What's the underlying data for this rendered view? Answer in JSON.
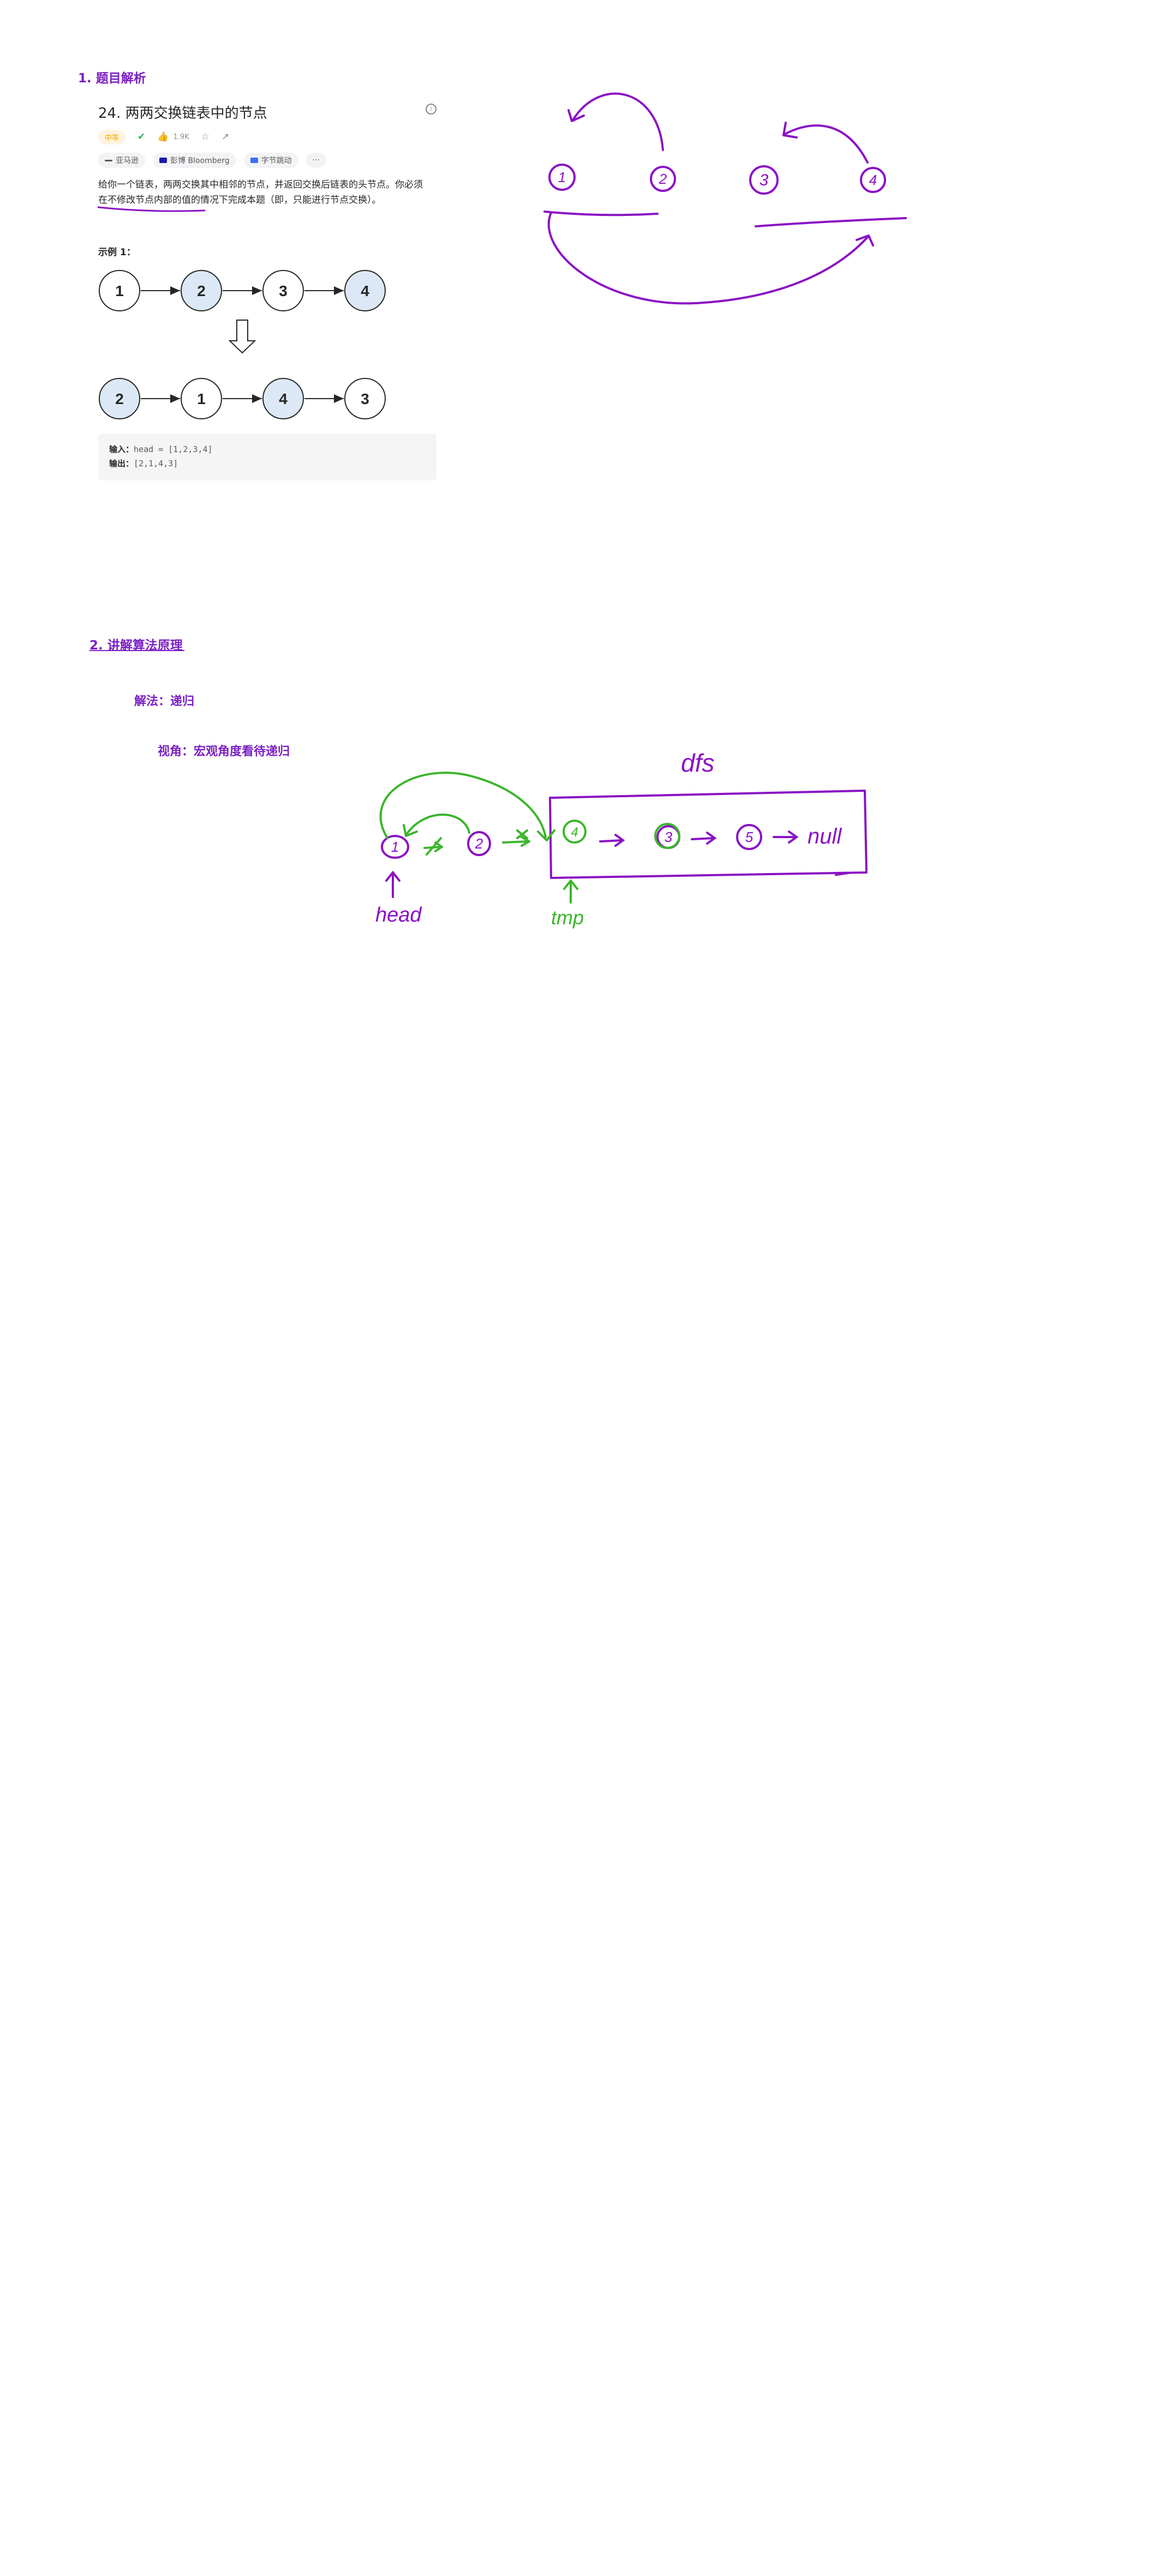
{
  "section1": {
    "heading": "1. 题目解析"
  },
  "problem": {
    "title": "24. 两两交换链表中的节点",
    "difficulty": "中等",
    "like_count": "1.9K",
    "tags": [
      {
        "name": "亚马逊",
        "color": "#555555"
      },
      {
        "name": "彭博 Bloomberg",
        "color": "#1a1aa6"
      },
      {
        "name": "字节跳动",
        "color": "#3b6ef5"
      }
    ],
    "more": "···",
    "description_line1": "给你一个链表，两两交换其中相邻的节点，并返回交换后链表的头节点。你必须",
    "description_line2": "在不修改节点内部的值的情况下完成本题（即，只能进行节点交换）。",
    "example_label": "示例 1：",
    "input_label": "输入：",
    "input_value": "head = [1,2,3,4]",
    "output_label": "输出：",
    "output_value": "[2,1,4,3]",
    "before_nodes": [
      "1",
      "2",
      "3",
      "4"
    ],
    "after_nodes": [
      "2",
      "1",
      "4",
      "3"
    ],
    "colors": {
      "highlight_node": "#dce8f6",
      "node_border": "#262626"
    }
  },
  "sketch1": {
    "nodes": [
      "1",
      "2",
      "3",
      "4"
    ],
    "ink": "#8a12c4"
  },
  "section2": {
    "heading": "2. 讲解算法原理",
    "method": "解法：递归",
    "view": "视角：宏观角度看待递归"
  },
  "sketch2": {
    "label_dfs": "dfs",
    "label_head": "head",
    "label_tmp": "tmp",
    "nodes": [
      "1",
      "2",
      "4",
      "3",
      "5"
    ],
    "null_text": "null",
    "ink_purple": "#8a12c4",
    "ink_green": "#3cb52c"
  }
}
